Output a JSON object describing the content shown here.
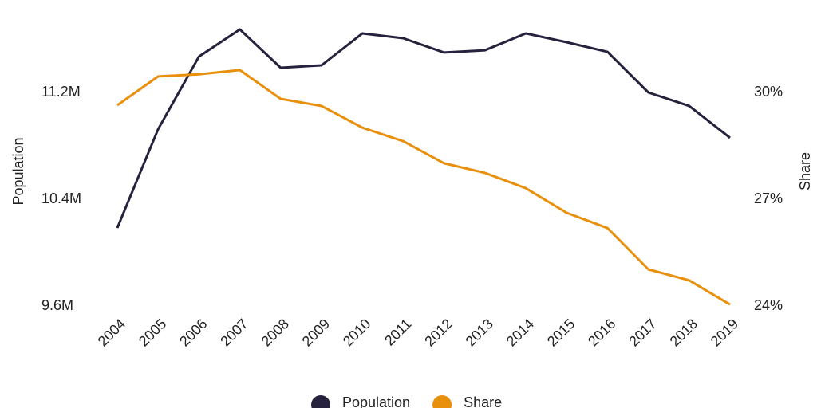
{
  "chart_data": {
    "type": "line",
    "categories": [
      "2004",
      "2005",
      "2006",
      "2007",
      "2008",
      "2009",
      "2010",
      "2011",
      "2012",
      "2013",
      "2014",
      "2015",
      "2016",
      "2017",
      "2018",
      "2019"
    ],
    "series": [
      {
        "name": "Population",
        "color": "#26223d",
        "axis": "y",
        "values": [
          10185000,
          10925000,
          11469000,
          11672000,
          11385000,
          11403000,
          11642000,
          11606000,
          11499000,
          11516000,
          11642000,
          11576000,
          11504000,
          11200000,
          11099000,
          10860000
        ]
      },
      {
        "name": "Share",
        "color": "#e8900c",
        "axis": "y2",
        "values": [
          29.64,
          30.45,
          30.51,
          30.63,
          29.82,
          29.62,
          29.01,
          28.63,
          28.01,
          27.74,
          27.31,
          26.62,
          26.19,
          25.03,
          24.72,
          24.04
        ]
      }
    ],
    "ylabel": "Population",
    "y2label": "Share",
    "ylim": [
      9600000,
      11800000
    ],
    "yticks": [
      {
        "value": 9600000,
        "label": "9.6M"
      },
      {
        "value": 10400000,
        "label": "10.4M"
      },
      {
        "value": 11200000,
        "label": "11.2M"
      }
    ],
    "y2lim": [
      24,
      32.25
    ],
    "y2ticks": [
      {
        "value": 24,
        "label": "24%"
      },
      {
        "value": 27,
        "label": "27%"
      },
      {
        "value": 30,
        "label": "30%"
      }
    ],
    "grid": false,
    "legend": "bottom"
  }
}
